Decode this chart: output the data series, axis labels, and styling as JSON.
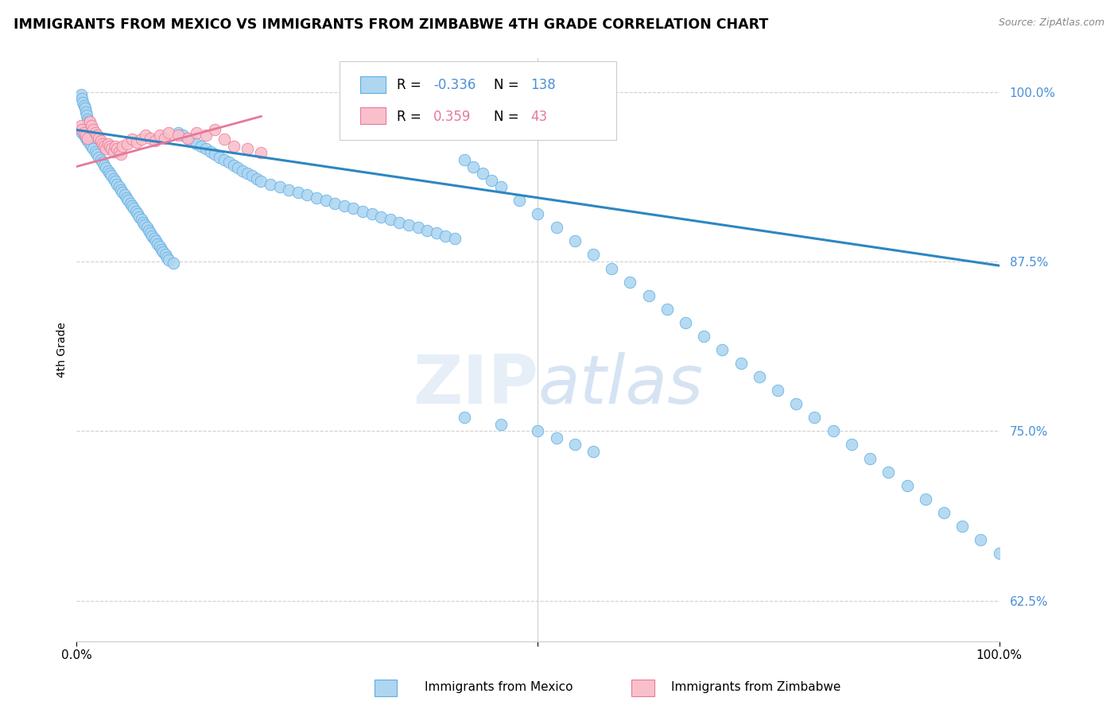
{
  "title": "IMMIGRANTS FROM MEXICO VS IMMIGRANTS FROM ZIMBABWE 4TH GRADE CORRELATION CHART",
  "source": "Source: ZipAtlas.com",
  "xlabel_bottom": "Immigrants from Mexico",
  "xlabel_bottom2": "Immigrants from Zimbabwe",
  "ylabel": "4th Grade",
  "watermark": "ZIPatlas",
  "legend_blue_r": "R = ",
  "legend_blue_rval": "-0.336",
  "legend_blue_n": "N = ",
  "legend_blue_nval": "138",
  "legend_pink_r": "R =  ",
  "legend_pink_rval": "0.359",
  "legend_pink_n": "N =  ",
  "legend_pink_nval": "43",
  "blue_color": "#aed6f1",
  "blue_edge_color": "#5dade2",
  "blue_line_color": "#2e86c1",
  "pink_color": "#f9c0cb",
  "pink_edge_color": "#e8789a",
  "pink_line_color": "#e8789a",
  "xlim": [
    0.0,
    1.0
  ],
  "ylim": [
    0.595,
    1.025
  ],
  "yticks": [
    0.625,
    0.75,
    0.875,
    1.0
  ],
  "ytick_labels": [
    "62.5%",
    "75.0%",
    "87.5%",
    "100.0%"
  ],
  "blue_line_x0": 0.0,
  "blue_line_x1": 1.0,
  "blue_line_y0": 0.972,
  "blue_line_y1": 0.872,
  "pink_line_x0": 0.0,
  "pink_line_x1": 0.2,
  "pink_line_y0": 0.945,
  "pink_line_y1": 0.982,
  "blue_scatter_x": [
    0.005,
    0.006,
    0.007,
    0.008,
    0.009,
    0.01,
    0.011,
    0.012,
    0.013,
    0.014,
    0.005,
    0.006,
    0.008,
    0.01,
    0.012,
    0.014,
    0.016,
    0.018,
    0.02,
    0.022,
    0.024,
    0.026,
    0.028,
    0.03,
    0.032,
    0.034,
    0.036,
    0.038,
    0.04,
    0.042,
    0.044,
    0.046,
    0.048,
    0.05,
    0.052,
    0.054,
    0.056,
    0.058,
    0.06,
    0.062,
    0.064,
    0.066,
    0.068,
    0.07,
    0.072,
    0.074,
    0.076,
    0.078,
    0.08,
    0.082,
    0.084,
    0.086,
    0.088,
    0.09,
    0.092,
    0.094,
    0.096,
    0.098,
    0.1,
    0.105,
    0.11,
    0.115,
    0.12,
    0.125,
    0.13,
    0.135,
    0.14,
    0.145,
    0.15,
    0.155,
    0.16,
    0.165,
    0.17,
    0.175,
    0.18,
    0.185,
    0.19,
    0.195,
    0.2,
    0.21,
    0.22,
    0.23,
    0.24,
    0.25,
    0.26,
    0.27,
    0.28,
    0.29,
    0.3,
    0.31,
    0.32,
    0.33,
    0.34,
    0.35,
    0.36,
    0.37,
    0.38,
    0.39,
    0.4,
    0.41,
    0.42,
    0.43,
    0.44,
    0.45,
    0.46,
    0.48,
    0.5,
    0.52,
    0.54,
    0.56,
    0.58,
    0.6,
    0.62,
    0.64,
    0.66,
    0.68,
    0.7,
    0.72,
    0.74,
    0.76,
    0.78,
    0.8,
    0.82,
    0.84,
    0.86,
    0.88,
    0.9,
    0.92,
    0.94,
    0.96,
    0.98,
    1.0,
    0.42,
    0.46,
    0.5,
    0.52,
    0.54,
    0.56
  ],
  "blue_scatter_y": [
    0.998,
    0.995,
    0.992,
    0.99,
    0.988,
    0.985,
    0.983,
    0.98,
    0.978,
    0.975,
    0.972,
    0.97,
    0.968,
    0.966,
    0.964,
    0.962,
    0.96,
    0.958,
    0.956,
    0.954,
    0.952,
    0.95,
    0.948,
    0.946,
    0.944,
    0.942,
    0.94,
    0.938,
    0.936,
    0.934,
    0.932,
    0.93,
    0.928,
    0.926,
    0.924,
    0.922,
    0.92,
    0.918,
    0.916,
    0.914,
    0.912,
    0.91,
    0.908,
    0.906,
    0.904,
    0.902,
    0.9,
    0.898,
    0.896,
    0.894,
    0.892,
    0.89,
    0.888,
    0.886,
    0.884,
    0.882,
    0.88,
    0.878,
    0.876,
    0.874,
    0.97,
    0.968,
    0.966,
    0.964,
    0.962,
    0.96,
    0.958,
    0.956,
    0.954,
    0.952,
    0.95,
    0.948,
    0.946,
    0.944,
    0.942,
    0.94,
    0.938,
    0.936,
    0.934,
    0.932,
    0.93,
    0.928,
    0.926,
    0.924,
    0.922,
    0.92,
    0.918,
    0.916,
    0.914,
    0.912,
    0.91,
    0.908,
    0.906,
    0.904,
    0.902,
    0.9,
    0.898,
    0.896,
    0.894,
    0.892,
    0.95,
    0.945,
    0.94,
    0.935,
    0.93,
    0.92,
    0.91,
    0.9,
    0.89,
    0.88,
    0.87,
    0.86,
    0.85,
    0.84,
    0.83,
    0.82,
    0.81,
    0.8,
    0.79,
    0.78,
    0.77,
    0.76,
    0.75,
    0.74,
    0.73,
    0.72,
    0.71,
    0.7,
    0.69,
    0.68,
    0.67,
    0.66,
    0.76,
    0.755,
    0.75,
    0.745,
    0.74,
    0.735
  ],
  "pink_scatter_x": [
    0.005,
    0.006,
    0.008,
    0.01,
    0.012,
    0.014,
    0.016,
    0.018,
    0.02,
    0.022,
    0.024,
    0.026,
    0.028,
    0.03,
    0.032,
    0.034,
    0.036,
    0.038,
    0.04,
    0.042,
    0.044,
    0.046,
    0.048,
    0.05,
    0.055,
    0.06,
    0.065,
    0.07,
    0.075,
    0.08,
    0.085,
    0.09,
    0.095,
    0.1,
    0.11,
    0.12,
    0.13,
    0.14,
    0.15,
    0.16,
    0.17,
    0.185,
    0.2
  ],
  "pink_scatter_y": [
    0.975,
    0.972,
    0.97,
    0.968,
    0.966,
    0.978,
    0.975,
    0.972,
    0.97,
    0.968,
    0.966,
    0.964,
    0.962,
    0.96,
    0.958,
    0.962,
    0.96,
    0.958,
    0.956,
    0.96,
    0.958,
    0.956,
    0.954,
    0.96,
    0.962,
    0.965,
    0.963,
    0.965,
    0.968,
    0.966,
    0.964,
    0.968,
    0.966,
    0.97,
    0.968,
    0.966,
    0.97,
    0.968,
    0.972,
    0.965,
    0.96,
    0.958,
    0.955
  ]
}
